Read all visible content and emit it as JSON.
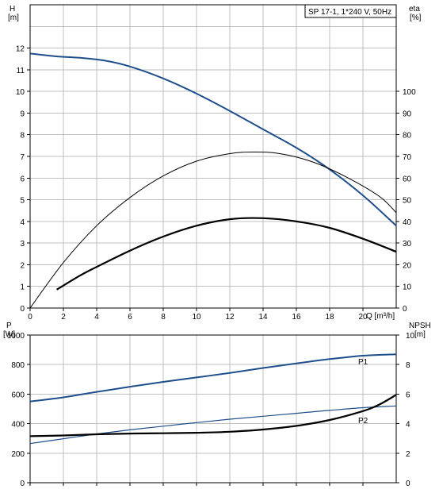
{
  "chart_data": [
    {
      "type": "line",
      "title": "SP 17-1, 1*240 V, 50Hz",
      "xlabel": "Q [m³/h]",
      "ylabel": "H",
      "ylabel_unit": "[m]",
      "y2label": "eta",
      "y2label_unit": "[%]",
      "xlim": [
        0,
        22
      ],
      "xticks": [
        0,
        2,
        4,
        6,
        8,
        10,
        12,
        14,
        16,
        18,
        20
      ],
      "ylim": [
        0,
        14
      ],
      "yticks": [
        0,
        1,
        2,
        3,
        4,
        5,
        6,
        7,
        8,
        9,
        10,
        11,
        12
      ],
      "y2lim": [
        0,
        140
      ],
      "y2ticks": [
        0,
        10,
        20,
        30,
        40,
        50,
        60,
        70,
        80,
        90,
        100
      ],
      "grid": true,
      "series": [
        {
          "axis": "left",
          "color": "#1f4e8c",
          "x": [
            0,
            1.5,
            3,
            4.5,
            6,
            8,
            10,
            12,
            14,
            16,
            18,
            20,
            22
          ],
          "y": [
            11.75,
            11.62,
            11.55,
            11.42,
            11.15,
            10.6,
            9.9,
            9.1,
            8.25,
            7.4,
            6.4,
            5.2,
            3.8
          ]
        },
        {
          "axis": "right",
          "color": "#000000",
          "x": [
            0,
            2,
            4,
            6,
            8,
            10,
            12,
            13.5,
            15,
            17,
            19,
            21,
            22
          ],
          "y": [
            0,
            21,
            38,
            51,
            61,
            67.8,
            71.3,
            72,
            71.3,
            67.4,
            60.5,
            51.5,
            44
          ]
        },
        {
          "axis": "right",
          "color": "#000000",
          "x": [
            1.6,
            3,
            4,
            6,
            8,
            10,
            12,
            14,
            16,
            18,
            20,
            22
          ],
          "y": [
            8.5,
            15,
            19,
            26.5,
            33,
            38,
            41,
            41.5,
            40,
            37,
            32,
            26
          ]
        }
      ]
    },
    {
      "type": "line",
      "ylabel": "P",
      "ylabel_unit": "[W]",
      "y2label": "NPSH",
      "y2label_unit": "[m]",
      "xlim": [
        0,
        22
      ],
      "ylim": [
        0,
        1000
      ],
      "yticks": [
        0,
        200,
        400,
        600,
        800,
        1000
      ],
      "y2lim": [
        0,
        10
      ],
      "y2ticks": [
        0,
        2,
        4,
        6,
        8,
        10
      ],
      "grid": true,
      "series": [
        {
          "name": "P1",
          "axis": "left",
          "color": "#1f4e8c",
          "x": [
            0,
            2,
            4,
            6,
            8,
            10,
            12,
            14,
            16,
            18,
            20,
            22
          ],
          "y": [
            550,
            578,
            615,
            650,
            683,
            713,
            743,
            777,
            808,
            837,
            860,
            870
          ]
        },
        {
          "name": "P2",
          "axis": "left",
          "color": "#1f4e8c",
          "x": [
            0,
            2,
            4,
            6,
            8,
            10,
            12,
            14,
            16,
            18,
            20,
            22
          ],
          "y": [
            265,
            298,
            330,
            358,
            383,
            407,
            430,
            450,
            470,
            490,
            508,
            520
          ]
        },
        {
          "axis": "right",
          "color": "#000000",
          "x": [
            0,
            2,
            4,
            6,
            8,
            10,
            12,
            14,
            16,
            18,
            20,
            21,
            22
          ],
          "y": [
            3.15,
            3.2,
            3.28,
            3.33,
            3.35,
            3.38,
            3.45,
            3.6,
            3.85,
            4.25,
            4.85,
            5.3,
            5.95
          ]
        }
      ]
    }
  ],
  "colors": {
    "grid": "#bfbfbf",
    "frame": "#000000",
    "blue_curve": "#1f4e8c",
    "black_curve": "#000000",
    "p_labels": "#1f4e8c"
  }
}
